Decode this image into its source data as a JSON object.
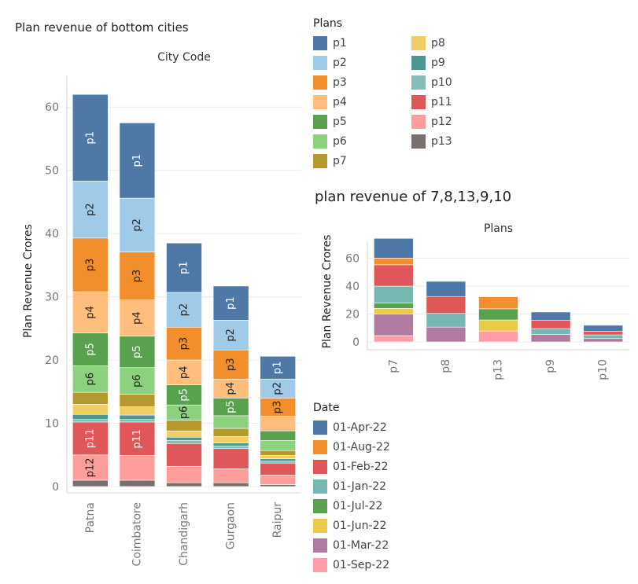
{
  "colors": {
    "p1": "#4e79a7",
    "p2": "#a0cbe8",
    "p3": "#f28e2b",
    "p4": "#ffbe7d",
    "p5": "#59a14f",
    "p6": "#8cd17d",
    "p7": "#b6992d",
    "p8": "#f1ce63",
    "p9": "#499894",
    "p10": "#86bcb6",
    "p11": "#e15759",
    "p12": "#ff9d9a",
    "p13": "#79706e",
    "01-Apr-22": "#4e79a7",
    "01-Aug-22": "#f28e2b",
    "01-Feb-22": "#e15759",
    "01-Jan-22": "#76b7b2",
    "01-Jul-22": "#59a14f",
    "01-Jun-22": "#edc948",
    "01-Mar-22": "#b07aa1",
    "01-Sep-22": "#ff9da7"
  },
  "plans_legend": {
    "title": "Plans",
    "col1": [
      "p1",
      "p2",
      "p3",
      "p4",
      "p5",
      "p6",
      "p7"
    ],
    "col2": [
      "p8",
      "p9",
      "p10",
      "p11",
      "p12",
      "p13"
    ]
  },
  "date_legend": {
    "title": "Date",
    "items": [
      "01-Apr-22",
      "01-Aug-22",
      "01-Feb-22",
      "01-Jan-22",
      "01-Jul-22",
      "01-Jun-22",
      "01-Mar-22",
      "01-Sep-22"
    ]
  },
  "chart_data": [
    {
      "type": "bar",
      "stacked": true,
      "title": "Plan revenue of bottom cities",
      "header": "City Code",
      "ylabel": "Plan Revenue Crores",
      "ylim": [
        0,
        65
      ],
      "yticks": [
        0,
        10,
        20,
        30,
        40,
        50,
        60
      ],
      "grid": true,
      "categories": [
        "Patna",
        "Coimbatore",
        "Chandigarh",
        "Gurgaon",
        "Raipur"
      ],
      "stack_order": [
        "p13",
        "p12",
        "p11",
        "p10",
        "p9",
        "p8",
        "p7",
        "p6",
        "p5",
        "p4",
        "p3",
        "p2",
        "p1"
      ],
      "labeled_segments": {
        "Patna": [
          "p12",
          "p11",
          "p6",
          "p5",
          "p4",
          "p3",
          "p2",
          "p1"
        ],
        "Coimbatore": [
          "p11",
          "p6",
          "p5",
          "p4",
          "p3",
          "p2",
          "p1"
        ],
        "Chandigarh": [
          "p6",
          "p5",
          "p4",
          "p3",
          "p2",
          "p1"
        ],
        "Gurgaon": [
          "p5",
          "p4",
          "p3",
          "p2",
          "p1"
        ],
        "Raipur": [
          "p3",
          "p2",
          "p1"
        ]
      },
      "series": [
        {
          "name": "p13",
          "values": [
            1.0,
            1.0,
            0.6,
            0.6,
            0.3
          ]
        },
        {
          "name": "p12",
          "values": [
            4.0,
            3.9,
            2.6,
            2.2,
            1.5
          ]
        },
        {
          "name": "p11",
          "values": [
            5.2,
            5.3,
            3.6,
            3.2,
            1.9
          ]
        },
        {
          "name": "p10",
          "values": [
            0.4,
            0.4,
            0.5,
            0.4,
            0.3
          ]
        },
        {
          "name": "p9",
          "values": [
            0.8,
            0.7,
            0.5,
            0.5,
            0.4
          ]
        },
        {
          "name": "p8",
          "values": [
            1.6,
            1.3,
            1.0,
            1.0,
            0.5
          ]
        },
        {
          "name": "p7",
          "values": [
            1.9,
            2.0,
            1.7,
            1.3,
            0.8
          ]
        },
        {
          "name": "p6",
          "values": [
            4.2,
            4.2,
            2.4,
            2.0,
            1.6
          ]
        },
        {
          "name": "p5",
          "values": [
            5.2,
            5.0,
            3.2,
            2.8,
            1.5
          ]
        },
        {
          "name": "p4",
          "values": [
            6.5,
            5.7,
            3.9,
            3.0,
            2.3
          ]
        },
        {
          "name": "p3",
          "values": [
            8.5,
            7.6,
            5.2,
            4.6,
            2.9
          ]
        },
        {
          "name": "p2",
          "values": [
            9.0,
            8.5,
            5.5,
            4.7,
            3.0
          ]
        },
        {
          "name": "p1",
          "values": [
            13.7,
            11.9,
            7.8,
            5.4,
            3.6
          ]
        }
      ]
    },
    {
      "type": "bar",
      "stacked": true,
      "title": "plan revenue of 7,8,13,9,10",
      "header": "Plans",
      "ylabel": "Plan Revenue Crores",
      "ylim": [
        0,
        72
      ],
      "yticks": [
        0,
        20,
        40,
        60
      ],
      "grid": true,
      "categories": [
        "p7",
        "p8",
        "p13",
        "p9",
        "p10"
      ],
      "stack_order": [
        "01-Sep-22",
        "01-Mar-22",
        "01-Jun-22",
        "01-Jul-22",
        "01-Jan-22",
        "01-Feb-22",
        "01-Aug-22",
        "01-Apr-22"
      ],
      "series": [
        {
          "name": "01-Sep-22",
          "values": [
            4.5,
            0,
            7.8,
            0,
            0
          ]
        },
        {
          "name": "01-Mar-22",
          "values": [
            15.5,
            10.6,
            0,
            5.3,
            2.4
          ]
        },
        {
          "name": "01-Jun-22",
          "values": [
            4.0,
            0,
            7.9,
            0,
            0
          ]
        },
        {
          "name": "01-Jul-22",
          "values": [
            3.8,
            0,
            8.0,
            0,
            0
          ]
        },
        {
          "name": "01-Jan-22",
          "values": [
            12.1,
            9.8,
            0,
            4.2,
            2.6
          ]
        },
        {
          "name": "01-Feb-22",
          "values": [
            15.3,
            12.1,
            0,
            6.1,
            2.7
          ]
        },
        {
          "name": "01-Aug-22",
          "values": [
            4.8,
            0,
            8.6,
            0,
            0
          ]
        },
        {
          "name": "01-Apr-22",
          "values": [
            14.1,
            10.8,
            0,
            5.8,
            4.2
          ]
        }
      ]
    }
  ]
}
